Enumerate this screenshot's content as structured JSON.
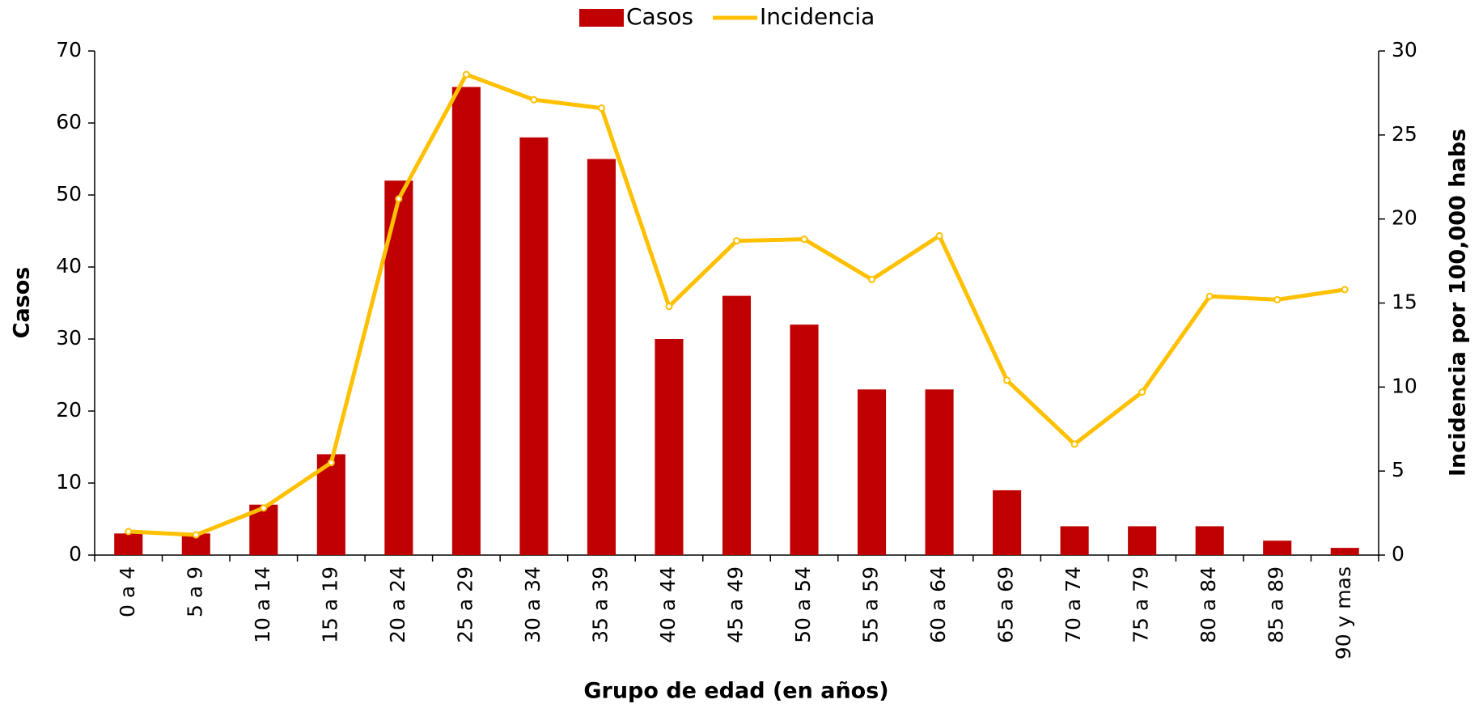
{
  "chart_data": {
    "type": "bar-line",
    "x_label": "Grupo de edad (en años)",
    "y_label": "Casos",
    "y2_label": "Incidencia por 100,000 habs",
    "categories": [
      "0 a 4",
      "5 a 9",
      "10 a 14",
      "15 a 19",
      "20 a 24",
      "25 a 29",
      "30 a 34",
      "35 a 39",
      "40 a 44",
      "45 a 49",
      "50 a 54",
      "55 a 59",
      "60 a 64",
      "65 a 69",
      "70 a 74",
      "75 a 79",
      "80 a 84",
      "85 a 89",
      "90 y mas"
    ],
    "series": [
      {
        "name": "Casos",
        "color": "#c00000",
        "kind": "bar",
        "values": [
          3,
          3,
          7,
          14,
          52,
          65,
          58,
          55,
          30,
          36,
          32,
          23,
          23,
          9,
          4,
          4,
          4,
          2,
          1
        ]
      },
      {
        "name": "Incidencia",
        "color": "#ffc000",
        "kind": "line",
        "axis": "y2",
        "values": [
          1.4,
          1.2,
          2.8,
          5.5,
          21.2,
          28.6,
          27.1,
          26.6,
          14.8,
          18.7,
          18.8,
          16.4,
          19.0,
          10.4,
          6.6,
          9.7,
          15.4,
          15.2,
          15.8
        ]
      }
    ],
    "ylim": [
      0,
      70
    ],
    "yticks": [
      0,
      10,
      20,
      30,
      40,
      50,
      60,
      70
    ],
    "y2lim": [
      0,
      30
    ],
    "y2ticks": [
      0,
      5,
      10,
      15,
      20,
      25,
      30
    ],
    "legend": "top"
  }
}
